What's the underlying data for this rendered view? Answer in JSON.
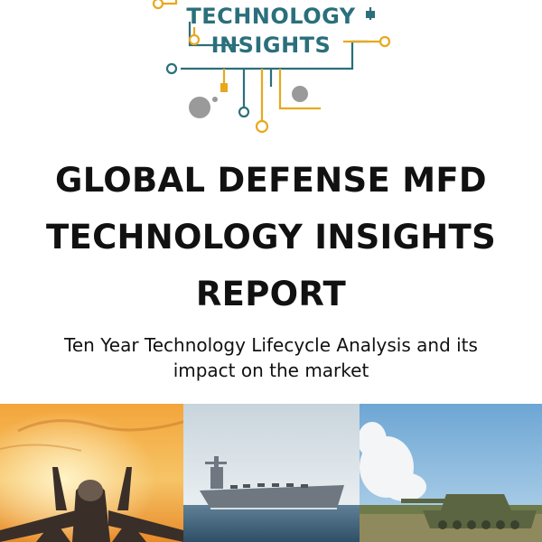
{
  "logo": {
    "line1": "TECHNOLOGY",
    "line2": "INSIGHTS",
    "colors": {
      "teal": "#2b6f7c",
      "gold": "#e8a81c",
      "gray": "#9a9a9a"
    },
    "icon": "circuit-logo-icon"
  },
  "title": {
    "line1": "GLOBAL DEFENSE MFD",
    "line2": "TECHNOLOGY INSIGHTS",
    "line3": "REPORT"
  },
  "subtitle": {
    "line1": "Ten Year Technology Lifecycle Analysis and its",
    "line2": "impact on the market"
  },
  "photos": [
    {
      "icon": "fighter-jet-photo"
    },
    {
      "icon": "aircraft-carrier-photo"
    },
    {
      "icon": "tank-photo"
    }
  ]
}
